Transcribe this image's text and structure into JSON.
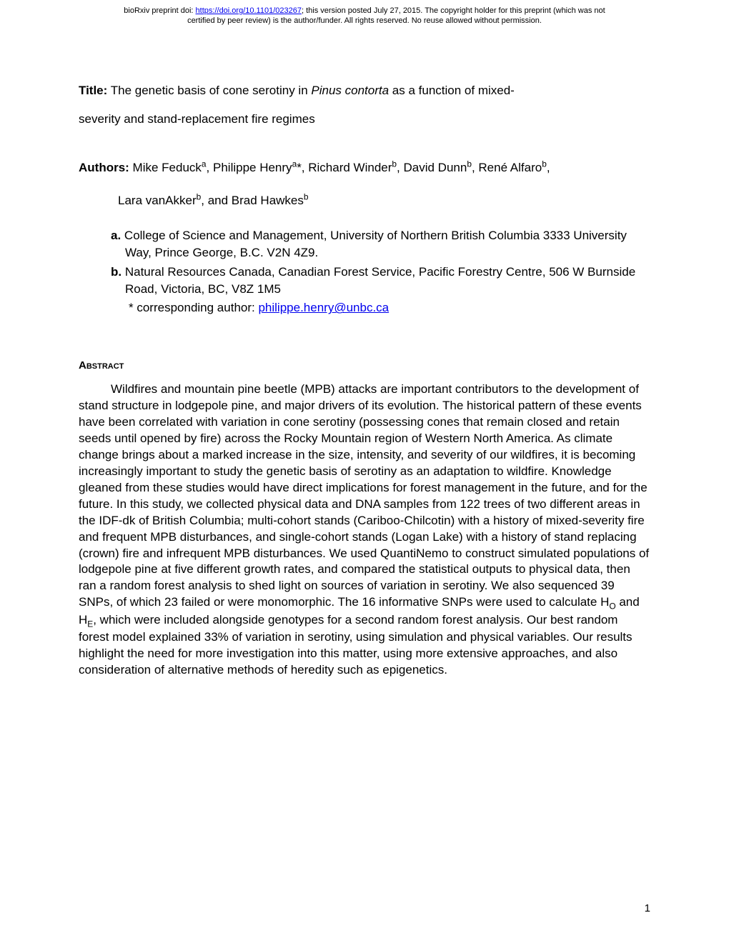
{
  "preprint": {
    "line1_prefix": "bioRxiv preprint doi: ",
    "doi_url": "https://doi.org/10.1101/023267",
    "line1_suffix": "; this version posted July 27, 2015. The copyright holder for this preprint (which was not",
    "line2": "certified by peer review) is the author/funder. All rights reserved. No reuse allowed without permission."
  },
  "title": {
    "label": "Title:",
    "part1": " The genetic basis of cone serotiny in ",
    "species": "Pinus contorta",
    "part2": " as a function of mixed-",
    "line2": "severity and stand-replacement fire regimes"
  },
  "authors": {
    "label": "Authors:",
    "line1": " Mike Feduck",
    "sup_a1": "a",
    "a2": ", Philippe Henry",
    "sup_a2": "a",
    "star": "*, Richard Winder",
    "sup_b1": "b",
    "a4": ", David Dunn",
    "sup_b2": "b",
    "a5": ", René Alfaro",
    "sup_b3": "b",
    "comma": ",",
    "line2_a": "Lara vanAkker",
    "sup_b4": "b",
    "line2_b": ", and Brad Hawkes",
    "sup_b5": "b"
  },
  "affiliations": {
    "a_label": "a.",
    "a_text": " College of Science and Management, University of Northern British Columbia 3333 University Way, Prince George, B.C. V2N 4Z9.",
    "b_label": "b.",
    "b_text": " Natural Resources Canada, Canadian Forest Service, Pacific Forestry Centre, 506 W Burnside Road, Victoria, BC, V8Z 1M5",
    "corr_star": "*",
    "corr_text": " corresponding author: ",
    "corr_email": "philippe.henry@unbc.ca"
  },
  "abstract": {
    "heading": "Abstract",
    "body_part1": "Wildfires and mountain pine beetle (MPB) attacks are important contributors to the development of stand structure in lodgepole pine, and major drivers of its evolution. The historical pattern of these events have been correlated with variation in cone serotiny (possessing cones that remain closed and retain seeds until opened by fire) across the Rocky Mountain region of Western North America. As climate change brings about a marked increase in the size, intensity, and severity of our wildfires, it is becoming increasingly important to study the genetic basis of serotiny as an adaptation to wildfire. Knowledge gleaned from these studies would have direct implications for forest management in the future, and for the future. In this study, we collected physical data and DNA samples from 122 trees of two different areas in the IDF-dk of British Columbia; multi-cohort stands (Cariboo-Chilcotin) with a history of mixed-severity fire and frequent MPB disturbances, and single-cohort stands (Logan Lake) with a history of stand replacing (crown) fire and infrequent MPB disturbances. We used QuantiNemo to construct simulated populations of lodgepole pine at five different growth rates, and compared the statistical outputs to physical data, then ran a random forest analysis to shed light on sources of variation in serotiny. We also sequenced 39 SNPs, of which 23 failed or were monomorphic. The 16 informative SNPs were used to calculate H",
    "sub_o": "O",
    "body_part2": " and H",
    "sub_e": "E",
    "body_part3": ", which were included alongside genotypes for a second random forest analysis. Our best random forest model explained 33% of variation in serotiny, using simulation and physical variables. Our results highlight the need for more investigation into this matter, using more extensive approaches, and also consideration of alternative methods of heredity such as epigenetics."
  },
  "page_number": "1"
}
